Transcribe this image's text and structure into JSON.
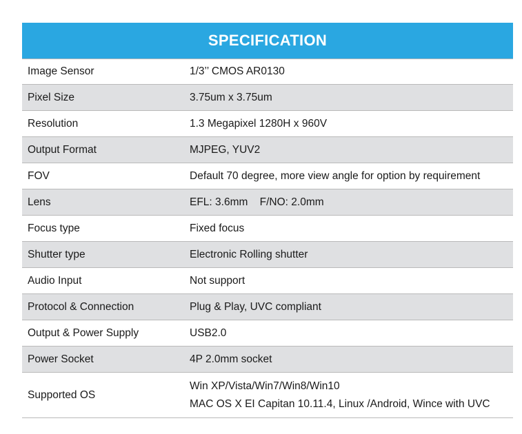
{
  "title": "SPECIFICATION",
  "rows": [
    {
      "label": "Image Sensor",
      "value": "1/3’’ CMOS AR0130"
    },
    {
      "label": "Pixel Size",
      "value": "3.75um x 3.75um"
    },
    {
      "label": "Resolution",
      "value": "1.3 Megapixel 1280H x 960V"
    },
    {
      "label": "Output Format",
      "value": "MJPEG, YUV2"
    },
    {
      "label": "FOV",
      "value": "Default 70 degree, more view angle for option by requirement"
    },
    {
      "label": "Lens",
      "value": "EFL: 3.6mm    F/NO: 2.0mm"
    },
    {
      "label": "Focus type",
      "value": "Fixed focus"
    },
    {
      "label": "Shutter type",
      "value": "Electronic Rolling shutter"
    },
    {
      "label": "Audio Input",
      "value": "Not support"
    },
    {
      "label": "Protocol & Connection",
      "value": "Plug & Play, UVC compliant"
    },
    {
      "label": "Output & Power Supply",
      "value": "USB2.0"
    },
    {
      "label": "Power Socket",
      "value": "4P 2.0mm socket"
    },
    {
      "label": "Supported OS",
      "value_lines": [
        "Win XP/Vista/Win7/Win8/Win10",
        "MAC OS X EI Capitan 10.11.4, Linux /Android, Wince with UVC"
      ]
    }
  ]
}
